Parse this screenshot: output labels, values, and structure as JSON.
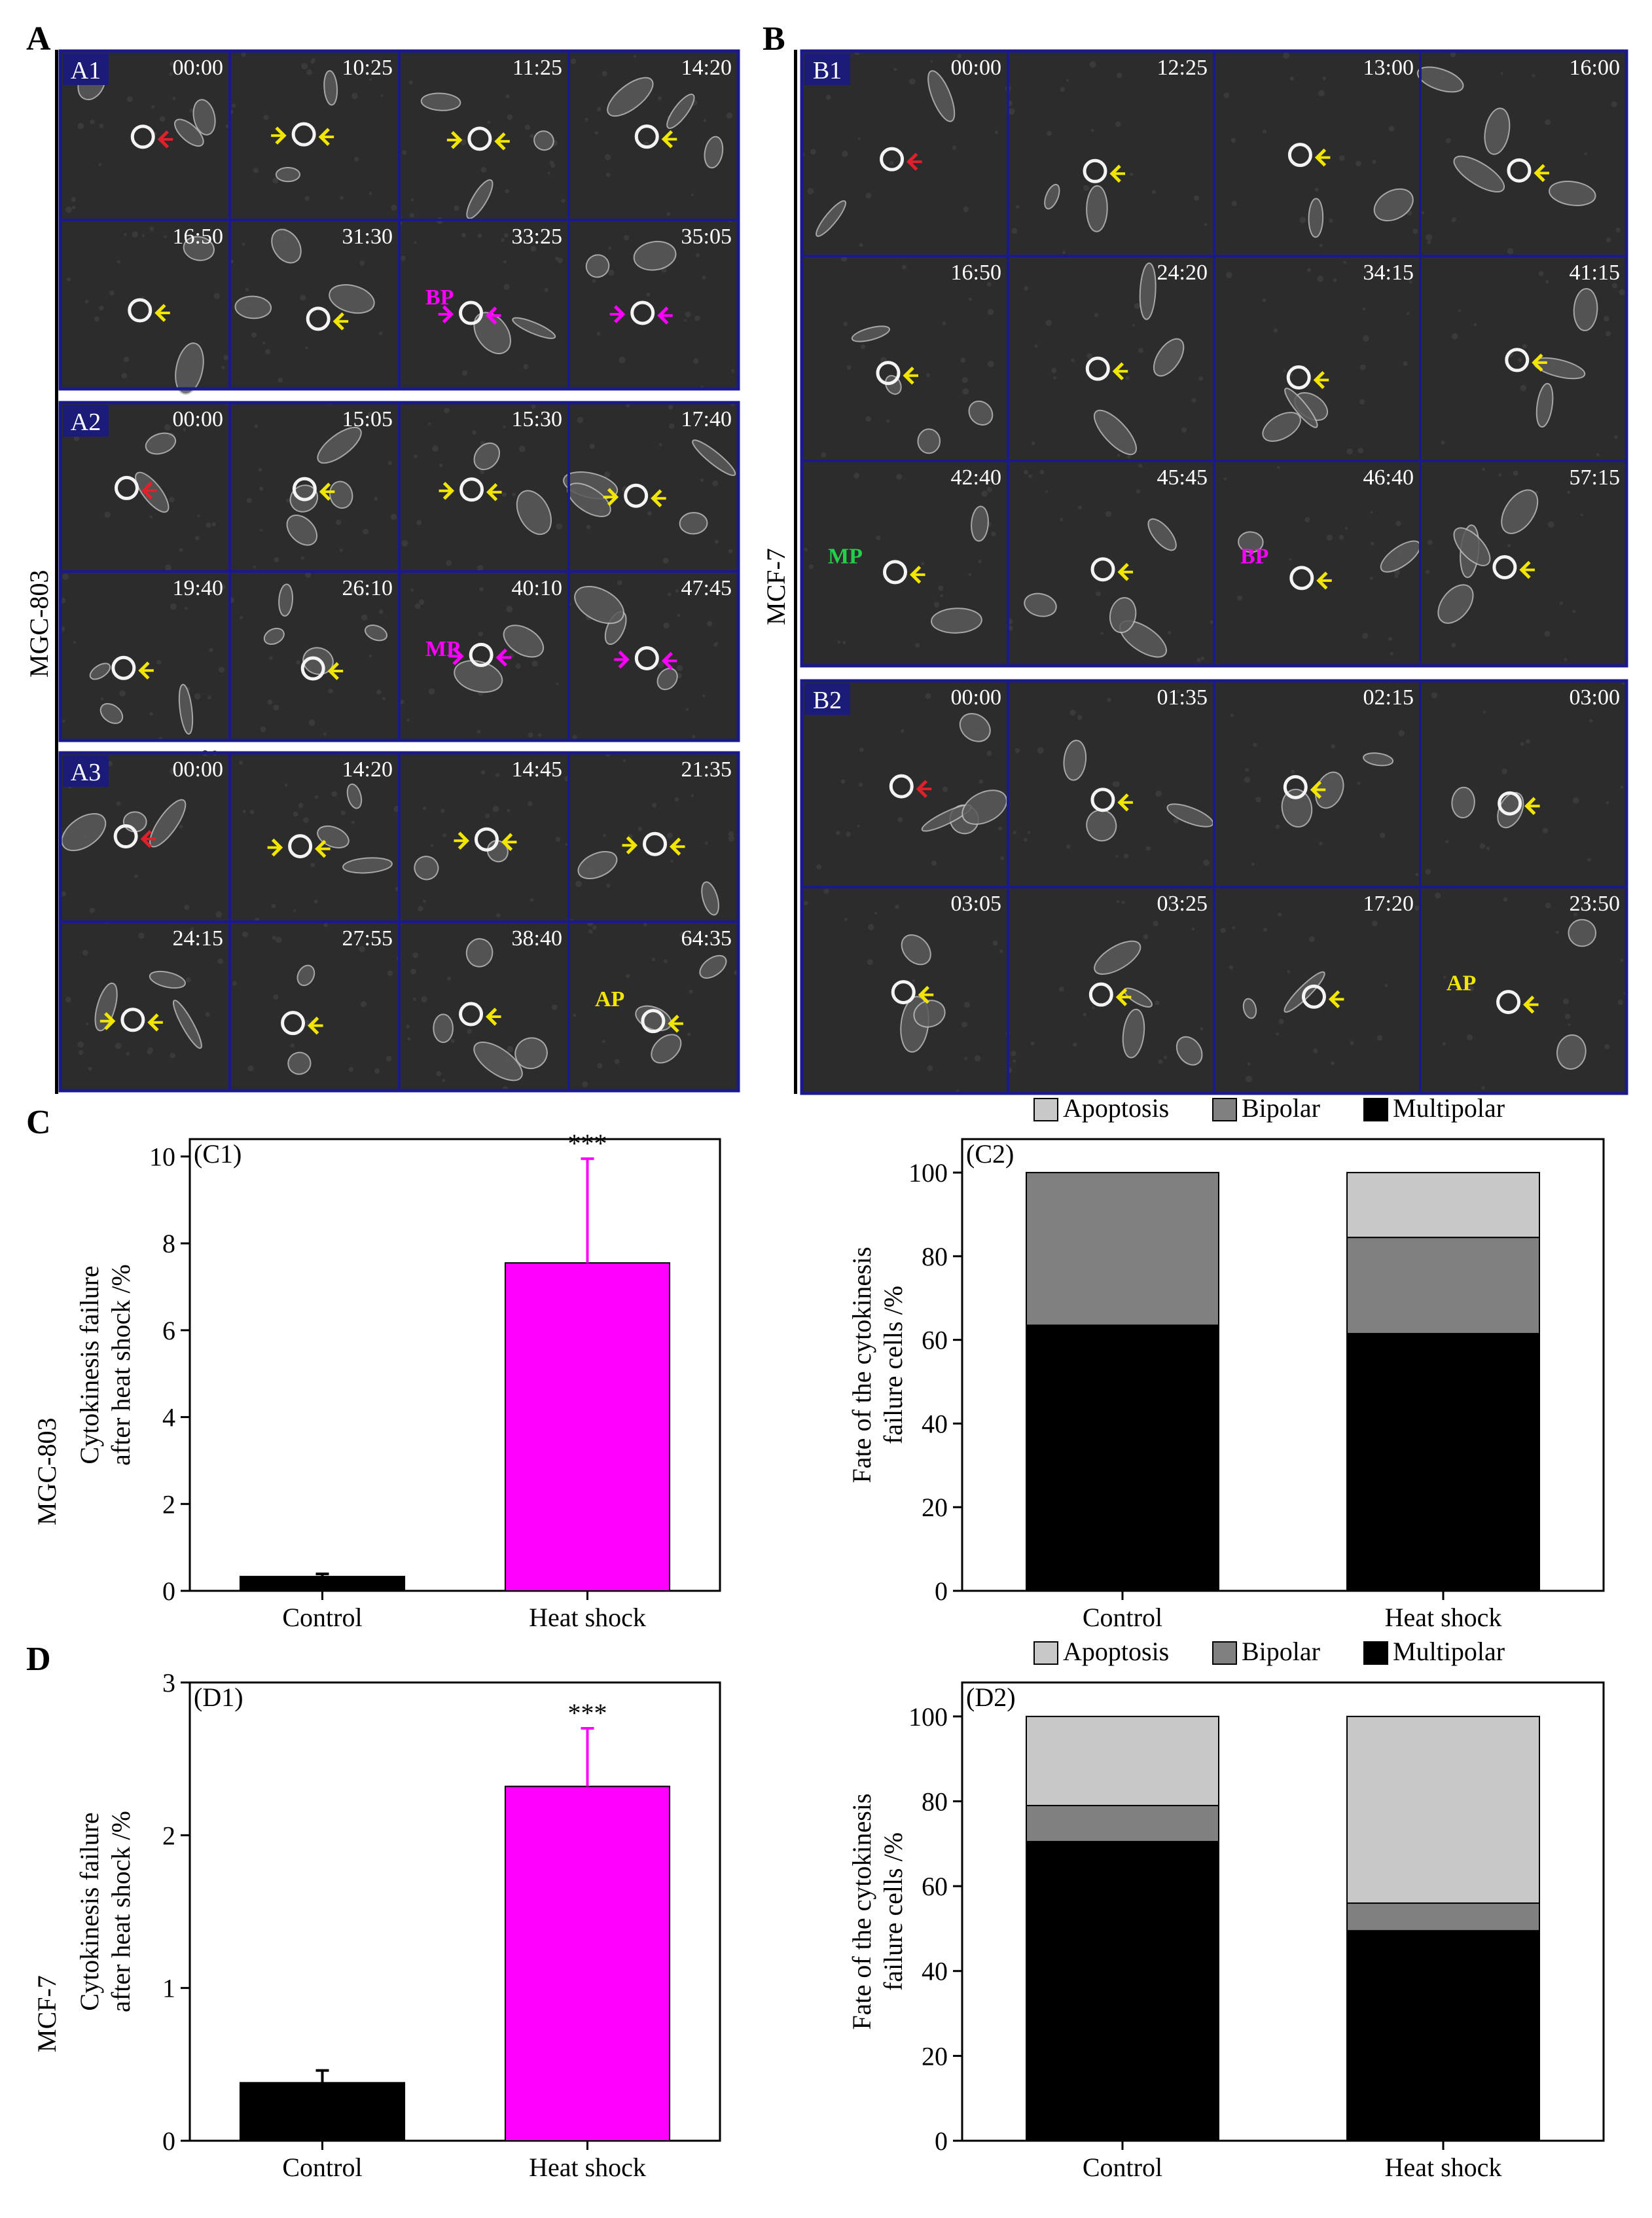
{
  "labels": {
    "A": "A",
    "B": "B",
    "C": "C",
    "D": "D",
    "mgc": "MGC-803",
    "mcf": "MCF-7"
  },
  "colors": {
    "frame": "#1a1a8c",
    "bg": "#2c2c2c",
    "red": "#e0202a",
    "yellow": "#f2e600",
    "magenta": "#ff00ff",
    "green": "#22d04a",
    "blue": "#22a8e6"
  },
  "blocks": {
    "A1": {
      "tag": "A1",
      "times": [
        "00:00",
        "10:25",
        "11:25",
        "14:20",
        "16:50",
        "31:30",
        "33:25",
        "35:05"
      ],
      "annotations": [
        {
          "cell": 6,
          "text": "BP",
          "color": "magenta"
        }
      ],
      "arrows": [
        [
          [
            "red"
          ]
        ],
        [
          [
            "yellow",
            "yellow"
          ]
        ],
        [
          [
            "yellow",
            "yellow"
          ]
        ],
        [
          [
            "yellow"
          ]
        ],
        [
          [
            "yellow"
          ]
        ],
        [
          [
            "yellow"
          ]
        ],
        [
          [
            "magenta",
            "magenta"
          ]
        ],
        [
          [
            "magenta",
            "magenta"
          ]
        ]
      ]
    },
    "A2": {
      "tag": "A2",
      "times": [
        "00:00",
        "15:05",
        "15:30",
        "17:40",
        "19:40",
        "26:10",
        "40:10",
        "47:45"
      ],
      "annotations": [
        {
          "cell": 6,
          "text": "MP",
          "color": "magenta"
        }
      ],
      "arrows": [
        [
          [
            "red"
          ]
        ],
        [
          [
            "yellow"
          ]
        ],
        [
          [
            "yellow",
            "yellow"
          ]
        ],
        [
          [
            "yellow",
            "yellow"
          ]
        ],
        [
          [
            "yellow"
          ]
        ],
        [
          [
            "yellow"
          ]
        ],
        [
          [
            "magenta",
            "magenta"
          ]
        ],
        [
          [
            "magenta",
            "magenta"
          ]
        ]
      ]
    },
    "A3": {
      "tag": "A3",
      "times": [
        "00:00",
        "14:20",
        "14:45",
        "21:35",
        "24:15",
        "27:55",
        "38:40",
        "64:35"
      ],
      "annotations": [
        {
          "cell": 7,
          "text": "AP",
          "color": "yellow"
        }
      ],
      "arrows": [
        [
          [
            "red"
          ]
        ],
        [
          [
            "yellow",
            "yellow"
          ]
        ],
        [
          [
            "yellow",
            "yellow"
          ]
        ],
        [
          [
            "yellow",
            "yellow"
          ]
        ],
        [
          [
            "yellow",
            "yellow"
          ]
        ],
        [
          [
            "yellow"
          ]
        ],
        [
          [
            "yellow"
          ]
        ],
        [
          [
            "yellow"
          ]
        ]
      ]
    },
    "B1": {
      "tag": "B1",
      "times": [
        "00:00",
        "12:25",
        "13:00",
        "16:00",
        "16:50",
        "24:20",
        "34:15",
        "41:15",
        "42:40",
        "45:45",
        "46:40",
        "57:15"
      ],
      "annotations": [
        {
          "cell": 8,
          "text": "MP",
          "color": "green"
        },
        {
          "cell": 10,
          "text": "BP",
          "color": "magenta"
        }
      ],
      "arrows": []
    },
    "B2": {
      "tag": "B2",
      "times": [
        "00:00",
        "01:35",
        "02:15",
        "03:00",
        "03:05",
        "03:25",
        "17:20",
        "23:50"
      ],
      "annotations": [
        {
          "cell": 7,
          "text": "AP",
          "color": "yellow"
        }
      ],
      "arrows": []
    }
  },
  "chart_data": [
    {
      "id": "C1",
      "type": "bar",
      "panel_tag": "(C1)",
      "categories": [
        "Control",
        "Heat shock"
      ],
      "values": [
        0.33,
        7.55
      ],
      "errors": [
        0.06,
        2.4
      ],
      "bar_colors": [
        "#000000",
        "#ff00ff"
      ],
      "significance": "***",
      "ylabel_lines": [
        "Cytokinesis failure",
        "after heat shock /%"
      ],
      "ylim": [
        0,
        10.4
      ],
      "yticks": [
        "0",
        "2",
        "4",
        "6",
        "8",
        "10"
      ]
    },
    {
      "id": "C2",
      "type": "bar",
      "stacked": true,
      "panel_tag": "(C2)",
      "categories": [
        "Control",
        "Heat shock"
      ],
      "series": [
        {
          "name": "Multipolar",
          "color": "#000000",
          "values": [
            63.5,
            61.5
          ]
        },
        {
          "name": "Bipolar",
          "color": "#808080",
          "values": [
            36.5,
            23.0
          ]
        },
        {
          "name": "Apoptosis",
          "color": "#c8c8c8",
          "values": [
            0,
            15.5
          ]
        }
      ],
      "legend_order": [
        "Apoptosis",
        "Bipolar",
        "Multipolar"
      ],
      "ylabel_lines": [
        "Fate of the cytokinesis",
        "failure cells /%"
      ],
      "ylim": [
        0,
        108
      ],
      "yticks": [
        "0",
        "20",
        "40",
        "60",
        "80",
        "100"
      ]
    },
    {
      "id": "D1",
      "type": "bar",
      "panel_tag": "(D1)",
      "categories": [
        "Control",
        "Heat shock"
      ],
      "values": [
        0.38,
        2.32
      ],
      "errors": [
        0.08,
        0.38
      ],
      "bar_colors": [
        "#000000",
        "#ff00ff"
      ],
      "significance": "***",
      "ylabel_lines": [
        "Cytokinesis failure",
        "after heat shock /%"
      ],
      "ylim": [
        0,
        3
      ],
      "yticks": [
        "0",
        "1",
        "2",
        "3"
      ]
    },
    {
      "id": "D2",
      "type": "bar",
      "stacked": true,
      "panel_tag": "(D2)",
      "categories": [
        "Control",
        "Heat shock"
      ],
      "series": [
        {
          "name": "Multipolar",
          "color": "#000000",
          "values": [
            70.5,
            49.5
          ]
        },
        {
          "name": "Bipolar",
          "color": "#808080",
          "values": [
            8.5,
            6.5
          ]
        },
        {
          "name": "Apoptosis",
          "color": "#c8c8c8",
          "values": [
            21.0,
            44.0
          ]
        }
      ],
      "legend_order": [
        "Apoptosis",
        "Bipolar",
        "Multipolar"
      ],
      "ylabel_lines": [
        "Fate of the cytokinesis",
        "failure cells /%"
      ],
      "ylim": [
        0,
        108
      ],
      "yticks": [
        "0",
        "20",
        "40",
        "60",
        "80",
        "100"
      ]
    }
  ]
}
